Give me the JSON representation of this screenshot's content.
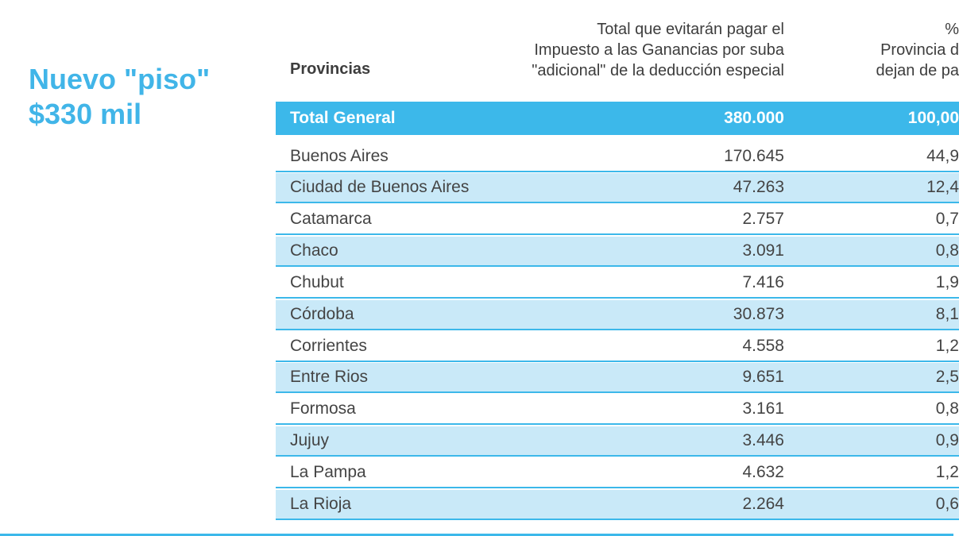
{
  "headline": {
    "line1": "Nuevo \"piso\"",
    "line2": "$330 mil"
  },
  "table": {
    "header": {
      "provincias": "Provincias",
      "total_lines": [
        "Total que evitarán pagar el",
        "Impuesto a las Ganancias por suba",
        "\"adicional\" de la deducción especial"
      ],
      "pct_lines": [
        "% ",
        "Provincia d",
        "dejan de pa"
      ]
    },
    "total_general": {
      "label": "Total General",
      "value": "380.000",
      "pct": "100,00"
    },
    "rows": [
      {
        "name": "Buenos Aires",
        "value": "170.645",
        "pct": "44,9"
      },
      {
        "name": "Ciudad de Buenos Aires",
        "value": "47.263",
        "pct": "12,4"
      },
      {
        "name": "Catamarca",
        "value": "2.757",
        "pct": "0,7"
      },
      {
        "name": "Chaco",
        "value": "3.091",
        "pct": "0,8"
      },
      {
        "name": "Chubut",
        "value": "7.416",
        "pct": "1,9"
      },
      {
        "name": "Córdoba",
        "value": "30.873",
        "pct": "8,1"
      },
      {
        "name": "Corrientes",
        "value": "4.558",
        "pct": "1,2"
      },
      {
        "name": "Entre Rios",
        "value": "9.651",
        "pct": "2,5"
      },
      {
        "name": "Formosa",
        "value": "3.161",
        "pct": "0,8"
      },
      {
        "name": "Jujuy",
        "value": "3.446",
        "pct": "0,9"
      },
      {
        "name": "La Pampa",
        "value": "4.632",
        "pct": "1,2"
      },
      {
        "name": "La Rioja",
        "value": "2.264",
        "pct": "0,6"
      }
    ]
  },
  "colors": {
    "accent": "#3cb8ea",
    "headline": "#41b5e8",
    "shaded_row": "#c9e9f8"
  }
}
